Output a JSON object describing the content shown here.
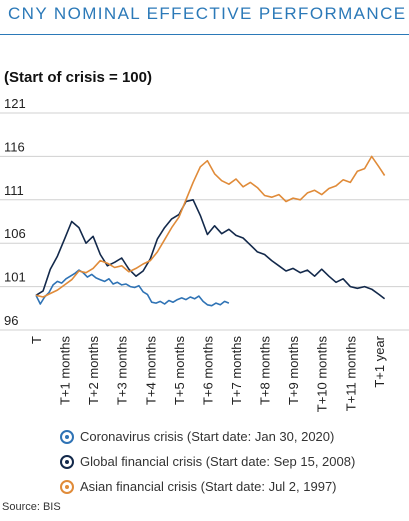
{
  "header": {
    "title": "CNY NOMINAL EFFECTIVE PERFORMANCE",
    "subtitle": "(Start of crisis = 100)"
  },
  "footer": {
    "source": "Source: BIS"
  },
  "colors": {
    "coronavirus": "#2f73b5",
    "global": "#13294b",
    "asian": "#e08b39",
    "grid": "#d0d0d0",
    "title": "#2b79b8"
  },
  "chart_data": {
    "type": "line",
    "title": "CNY NOMINAL EFFECTIVE PERFORMANCE",
    "ylabel": "(Start of crisis = 100)",
    "ylim": [
      96,
      121
    ],
    "yticks": [
      "121",
      "116",
      "111",
      "106",
      "101",
      "96"
    ],
    "xlim": [
      0,
      12.6
    ],
    "xticks": [
      {
        "x": 0,
        "label": "T"
      },
      {
        "x": 1,
        "label": "T+1 months"
      },
      {
        "x": 2,
        "label": "T+2 months"
      },
      {
        "x": 3,
        "label": "T+3 months"
      },
      {
        "x": 4,
        "label": "T+4 months"
      },
      {
        "x": 5,
        "label": "T+5 months"
      },
      {
        "x": 6,
        "label": "T+6 months"
      },
      {
        "x": 7,
        "label": "T+7 months"
      },
      {
        "x": 8,
        "label": "T+8 months"
      },
      {
        "x": 9,
        "label": "T+9 months"
      },
      {
        "x": 10,
        "label": "T+10 months"
      },
      {
        "x": 11,
        "label": "T+11 months"
      },
      {
        "x": 12,
        "label": "T+1 year"
      }
    ],
    "grid": "horizontal",
    "legend_position": "bottom",
    "series": [
      {
        "name": "Coronavirus crisis (Start date: Jan 30, 2020)",
        "key": "coronavirus",
        "x": [
          0,
          0.15,
          0.3,
          0.45,
          0.6,
          0.75,
          0.9,
          1.05,
          1.2,
          1.35,
          1.5,
          1.65,
          1.8,
          1.95,
          2.1,
          2.25,
          2.4,
          2.55,
          2.7,
          2.85,
          3.0,
          3.15,
          3.3,
          3.45,
          3.6,
          3.75,
          3.9,
          4.05,
          4.2,
          4.35,
          4.5,
          4.65,
          4.8,
          4.95,
          5.1,
          5.25,
          5.4,
          5.55,
          5.7,
          5.85,
          6.0,
          6.15,
          6.3,
          6.45,
          6.6,
          6.75
        ],
        "values": [
          100,
          99.0,
          99.8,
          100.3,
          101.2,
          101.6,
          101.4,
          101.9,
          102.2,
          102.5,
          102.9,
          102.6,
          102.1,
          102.4,
          102.0,
          101.8,
          101.6,
          101.9,
          101.3,
          101.5,
          101.2,
          101.3,
          101.0,
          100.9,
          101.1,
          100.4,
          100.1,
          99.2,
          99.1,
          99.3,
          99.0,
          99.4,
          99.2,
          99.5,
          99.7,
          99.5,
          99.8,
          99.6,
          99.9,
          99.3,
          98.9,
          98.8,
          99.1,
          98.9,
          99.3,
          99.1
        ]
      },
      {
        "name": "Global financial crisis (Start date: Sep 15, 2008)",
        "key": "global",
        "x": [
          0,
          0.25,
          0.5,
          0.75,
          1.0,
          1.25,
          1.5,
          1.75,
          2.0,
          2.25,
          2.5,
          2.75,
          3.0,
          3.25,
          3.5,
          3.75,
          4.0,
          4.25,
          4.5,
          4.75,
          5.0,
          5.25,
          5.5,
          5.75,
          6.0,
          6.25,
          6.5,
          6.75,
          7.0,
          7.25,
          7.5,
          7.75,
          8.0,
          8.25,
          8.5,
          8.75,
          9.0,
          9.25,
          9.5,
          9.75,
          10.0,
          10.25,
          10.5,
          10.75,
          11.0,
          11.25,
          11.5,
          11.75,
          12.0,
          12.2
        ],
        "values": [
          100,
          100.5,
          103.0,
          104.5,
          106.5,
          108.5,
          107.8,
          106.0,
          106.8,
          104.7,
          103.4,
          103.8,
          104.3,
          103.0,
          102.2,
          102.8,
          104.2,
          106.5,
          107.8,
          108.8,
          109.3,
          110.8,
          111.0,
          109.2,
          107.0,
          108.0,
          107.1,
          107.6,
          106.9,
          106.6,
          105.8,
          105.0,
          104.7,
          104.0,
          103.4,
          102.8,
          103.1,
          102.6,
          102.9,
          102.2,
          103.0,
          102.2,
          101.5,
          101.9,
          101.0,
          100.8,
          101.0,
          100.7,
          100.1,
          99.6
        ]
      },
      {
        "name": "Asian financial crisis (Start date: Jul 2, 1997)",
        "key": "asian",
        "x": [
          0,
          0.25,
          0.5,
          0.75,
          1.0,
          1.25,
          1.5,
          1.75,
          2.0,
          2.25,
          2.5,
          2.75,
          3.0,
          3.25,
          3.5,
          3.75,
          4.0,
          4.25,
          4.5,
          4.75,
          5.0,
          5.25,
          5.5,
          5.75,
          6.0,
          6.25,
          6.5,
          6.75,
          7.0,
          7.25,
          7.5,
          7.75,
          8.0,
          8.25,
          8.5,
          8.75,
          9.0,
          9.25,
          9.5,
          9.75,
          10.0,
          10.25,
          10.5,
          10.75,
          11.0,
          11.25,
          11.5,
          11.75,
          12.0,
          12.2
        ],
        "values": [
          100,
          99.8,
          100.2,
          100.6,
          101.2,
          101.8,
          102.8,
          102.6,
          103.1,
          104.0,
          103.7,
          103.2,
          103.4,
          102.7,
          103.1,
          103.6,
          104.0,
          105.0,
          106.4,
          107.8,
          109.0,
          111.0,
          113.0,
          114.8,
          115.5,
          114.0,
          113.2,
          112.8,
          113.4,
          112.5,
          113.0,
          112.4,
          111.5,
          111.3,
          111.6,
          110.8,
          111.2,
          111.0,
          111.8,
          112.1,
          111.6,
          112.3,
          112.6,
          113.3,
          113.0,
          114.3,
          114.6,
          116.0,
          114.8,
          113.8
        ]
      }
    ]
  }
}
